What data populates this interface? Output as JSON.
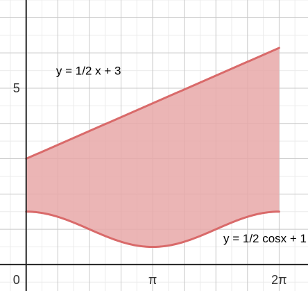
{
  "chart_data": {
    "type": "area",
    "title": "",
    "xlabel": "",
    "ylabel": "",
    "xlim": [
      -0.65,
      7.0
    ],
    "ylim": [
      -0.75,
      7.5
    ],
    "grid": true,
    "x_ticks": [
      {
        "value": 0,
        "label": "0"
      },
      {
        "value": 3.14159,
        "label": "π"
      },
      {
        "value": 6.28319,
        "label": "2π"
      }
    ],
    "y_ticks": [
      {
        "value": 5,
        "label": "5"
      }
    ],
    "fill_between": {
      "x_range": [
        0,
        6.28319
      ],
      "color": "#e8a8a8",
      "opacity": 0.85
    },
    "series": [
      {
        "label": "y = 1/2 x + 3",
        "function": "0.5*x + 3",
        "color": "#d96a6a",
        "samples": [
          {
            "x": 0,
            "y": 3.0
          },
          {
            "x": 3.14159,
            "y": 4.571
          },
          {
            "x": 6.28319,
            "y": 6.142
          }
        ]
      },
      {
        "label": "y = 1/2 cosx + 1",
        "function": "0.5*cos(x) + 1",
        "color": "#d96a6a",
        "samples": [
          {
            "x": 0,
            "y": 1.5
          },
          {
            "x": 1.5708,
            "y": 1.0
          },
          {
            "x": 3.14159,
            "y": 0.5
          },
          {
            "x": 4.71239,
            "y": 1.0
          },
          {
            "x": 6.28319,
            "y": 1.5
          }
        ]
      }
    ]
  }
}
